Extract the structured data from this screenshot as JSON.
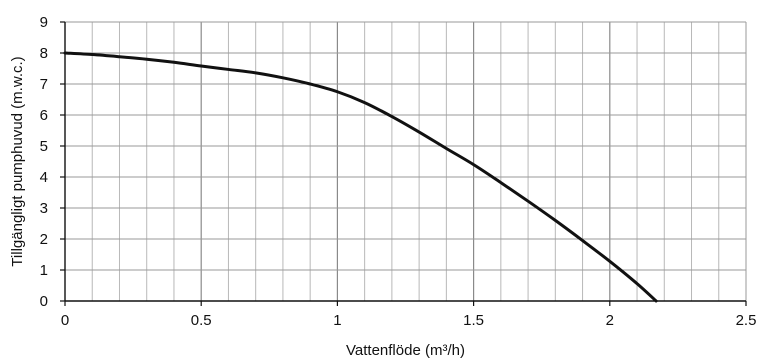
{
  "chart_data": {
    "type": "line",
    "title": "",
    "xlabel": "Vattenflöde (m³/h)",
    "ylabel": "Tillgängligt pumphuvud (m.w.c.)",
    "xlim": [
      0,
      2.5
    ],
    "ylim": [
      0,
      9
    ],
    "x_ticks": [
      "0",
      "0.5",
      "1",
      "1.5",
      "2",
      "2.5"
    ],
    "y_ticks": [
      "0",
      "1",
      "2",
      "3",
      "4",
      "5",
      "6",
      "7",
      "8",
      "9"
    ],
    "grid": true,
    "grid_minor_x_step": 0.1,
    "grid_minor_y_step": 1,
    "legend": "none",
    "series": [
      {
        "color": "#111111",
        "x": [
          0,
          0.1,
          0.2,
          0.3,
          0.4,
          0.5,
          0.6,
          0.7,
          0.8,
          0.9,
          1.0,
          1.1,
          1.2,
          1.3,
          1.4,
          1.5,
          1.6,
          1.7,
          1.8,
          1.9,
          2.0,
          2.1,
          2.17
        ],
        "values": [
          8.0,
          7.95,
          7.88,
          7.8,
          7.7,
          7.58,
          7.47,
          7.36,
          7.2,
          7.0,
          6.75,
          6.4,
          5.95,
          5.45,
          4.92,
          4.4,
          3.82,
          3.22,
          2.6,
          1.95,
          1.28,
          0.56,
          0.0
        ]
      }
    ]
  }
}
